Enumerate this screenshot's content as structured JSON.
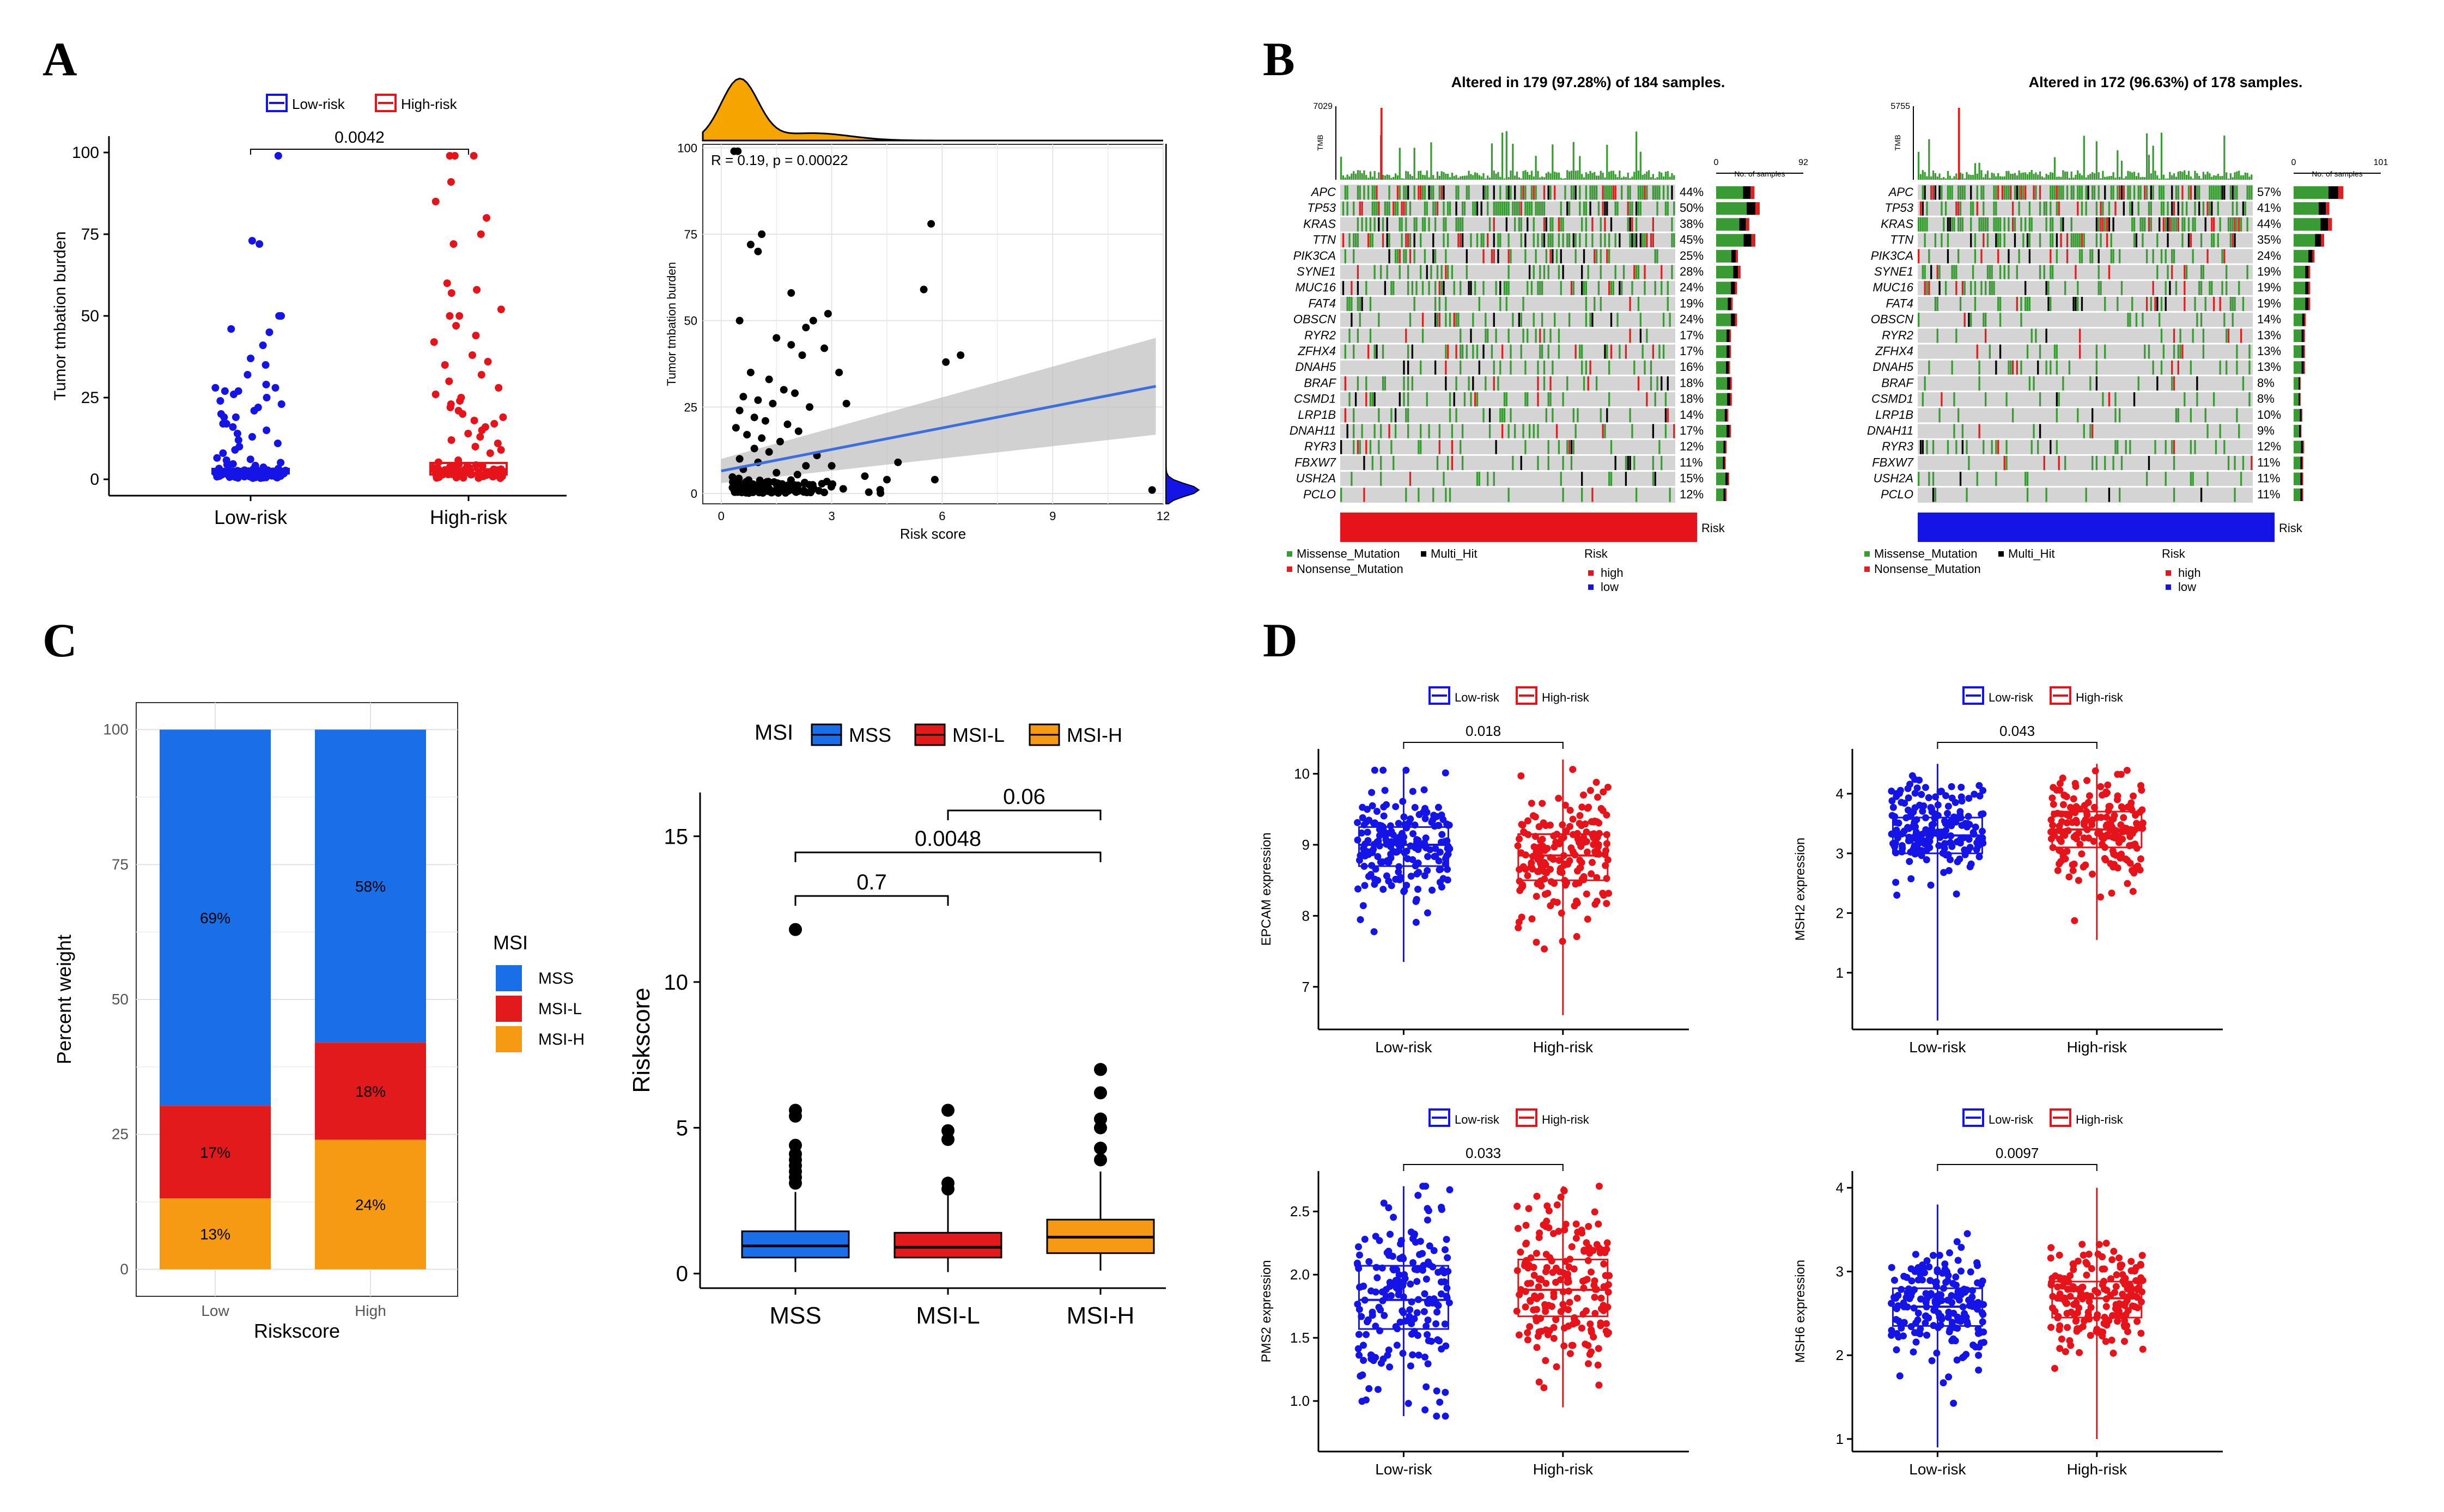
{
  "panel_letters": [
    "A",
    "B",
    "C",
    "D"
  ],
  "colors": {
    "blue": "#1414e6",
    "red": "#e6141a",
    "mss": "#1a6ee8",
    "msil": "#e31a1c",
    "msih": "#f59a12",
    "missense": "#3a9b35",
    "nonsense": "#e02020",
    "multi": "#000000",
    "grey": "#d4d4d4",
    "orange": "#f5a400",
    "fit": "#3b6fe0"
  },
  "chart_data": [
    {
      "id": "A1",
      "type": "box",
      "title": "",
      "ylabel": "Tumor tmbation burden",
      "xlabel": "",
      "legend": [
        "Low-risk",
        "High-risk"
      ],
      "categories": [
        "Low-risk",
        "High-risk"
      ],
      "ylim": [
        0,
        100
      ],
      "yticks": [
        0,
        25,
        50,
        75,
        100
      ],
      "medians": [
        2.5,
        3
      ],
      "q1": [
        1.8,
        1.5
      ],
      "q3": [
        3.2,
        5
      ],
      "pvalue": "0.0042",
      "outliers": [
        [
          99,
          73,
          72,
          50,
          50,
          46,
          45,
          41,
          37,
          35,
          32,
          29,
          28,
          28,
          27,
          27,
          26,
          25,
          24,
          23,
          22,
          21,
          20,
          19,
          19,
          17,
          17,
          16,
          15,
          14,
          13,
          12,
          11,
          10,
          9,
          8
        ],
        [
          99,
          99,
          99,
          91,
          85,
          80,
          75,
          72,
          60,
          58,
          57,
          52,
          50,
          50,
          47,
          44,
          42,
          38,
          36,
          35,
          32,
          30,
          28,
          26,
          25,
          24,
          23,
          22,
          21,
          20,
          19,
          18,
          17,
          16,
          15,
          14,
          13,
          12,
          11,
          10,
          9,
          8
        ]
      ]
    },
    {
      "id": "A2",
      "type": "scatter",
      "annotation": "R = 0.19, p = 0.00022",
      "ylabel": "Tumor tmbation burden",
      "xlabel": "Risk score",
      "xlim": [
        -0.5,
        12
      ],
      "ylim": [
        -3,
        101
      ],
      "xticks": [
        0,
        3,
        6,
        9,
        12
      ],
      "yticks": [
        0,
        25,
        50,
        75,
        100
      ],
      "fit_line": {
        "x0": 0,
        "y0": 6.5,
        "x1": 11.8,
        "y1": 31
      },
      "points": [
        [
          0.35,
          99
        ],
        [
          0.45,
          99
        ],
        [
          0.8,
          72
        ],
        [
          1.0,
          70
        ],
        [
          1.1,
          75
        ],
        [
          5.7,
          78
        ],
        [
          5.5,
          59
        ],
        [
          1.9,
          58
        ],
        [
          0.5,
          50
        ],
        [
          2.3,
          48
        ],
        [
          2.5,
          50
        ],
        [
          2.9,
          52
        ],
        [
          1.5,
          45
        ],
        [
          1.9,
          43
        ],
        [
          2.2,
          40
        ],
        [
          2.8,
          42
        ],
        [
          6.5,
          40
        ],
        [
          6.1,
          38
        ],
        [
          3.2,
          35
        ],
        [
          1.3,
          33
        ],
        [
          0.8,
          35
        ],
        [
          1.7,
          30
        ],
        [
          2.0,
          29
        ],
        [
          0.6,
          28
        ],
        [
          1.0,
          27
        ],
        [
          1.4,
          26
        ],
        [
          2.4,
          25
        ],
        [
          3.4,
          26
        ],
        [
          0.5,
          24
        ],
        [
          0.9,
          22
        ],
        [
          1.2,
          21
        ],
        [
          1.8,
          20
        ],
        [
          2.1,
          18
        ],
        [
          0.4,
          19
        ],
        [
          0.7,
          17
        ],
        [
          1.1,
          16
        ],
        [
          1.6,
          15
        ],
        [
          0.9,
          13
        ],
        [
          1.3,
          12
        ],
        [
          2.6,
          11
        ],
        [
          0.5,
          10
        ],
        [
          1.0,
          9
        ],
        [
          2.3,
          8
        ],
        [
          3.0,
          8
        ],
        [
          4.8,
          9
        ],
        [
          0.6,
          7
        ],
        [
          1.5,
          6
        ],
        [
          3.9,
          5
        ],
        [
          5.8,
          4
        ],
        [
          4.5,
          4
        ],
        [
          11.7,
          1
        ]
      ]
    },
    {
      "id": "B1",
      "type": "oncoplot",
      "title": "Altered in 179 (97.28%) of 184 samples.",
      "tmb_max": "7029",
      "tmb_label": "TMB",
      "count_axis": [
        "0",
        "No. of samples",
        "92"
      ],
      "genes": [
        "APC",
        "TP53",
        "KRAS",
        "TTN",
        "PIK3CA",
        "SYNE1",
        "MUC16",
        "FAT4",
        "OBSCN",
        "RYR2",
        "ZFHX4",
        "DNAH5",
        "BRAF",
        "CSMD1",
        "LRP1B",
        "DNAH11",
        "RYR3",
        "FBXW7",
        "USH2A",
        "PCLO"
      ],
      "percents": [
        "44%",
        "50%",
        "38%",
        "45%",
        "25%",
        "28%",
        "24%",
        "19%",
        "24%",
        "17%",
        "17%",
        "16%",
        "18%",
        "18%",
        "14%",
        "17%",
        "12%",
        "11%",
        "15%",
        "12%"
      ],
      "frac": [
        0.44,
        0.5,
        0.38,
        0.45,
        0.25,
        0.28,
        0.24,
        0.19,
        0.24,
        0.17,
        0.17,
        0.16,
        0.18,
        0.18,
        0.14,
        0.17,
        0.12,
        0.11,
        0.15,
        0.12
      ],
      "risk_label": "Risk",
      "risk_group": "high",
      "legend_items": [
        "Missense_Mutation",
        "Multi_Hit",
        "Nonsense_Mutation"
      ],
      "risk_legend": [
        "Risk",
        "high",
        "low"
      ]
    },
    {
      "id": "B2",
      "type": "oncoplot",
      "title": "Altered in 172 (96.63%) of 178 samples.",
      "tmb_max": "5755",
      "tmb_label": "TMB",
      "count_axis": [
        "0",
        "No. of samples",
        "101"
      ],
      "genes": [
        "APC",
        "TP53",
        "KRAS",
        "TTN",
        "PIK3CA",
        "SYNE1",
        "MUC16",
        "FAT4",
        "OBSCN",
        "RYR2",
        "ZFHX4",
        "DNAH5",
        "BRAF",
        "CSMD1",
        "LRP1B",
        "DNAH11",
        "RYR3",
        "FBXW7",
        "USH2A",
        "PCLO"
      ],
      "percents": [
        "57%",
        "41%",
        "44%",
        "35%",
        "24%",
        "19%",
        "19%",
        "19%",
        "14%",
        "13%",
        "13%",
        "13%",
        "8%",
        "8%",
        "10%",
        "9%",
        "12%",
        "11%",
        "11%",
        "11%"
      ],
      "frac": [
        0.57,
        0.41,
        0.44,
        0.35,
        0.24,
        0.19,
        0.19,
        0.19,
        0.14,
        0.13,
        0.13,
        0.13,
        0.08,
        0.08,
        0.1,
        0.09,
        0.12,
        0.11,
        0.11,
        0.11
      ],
      "risk_label": "Risk",
      "risk_group": "low",
      "legend_items": [
        "Missense_Mutation",
        "Multi_Hit",
        "Nonsense_Mutation"
      ],
      "risk_legend": [
        "Risk",
        "high",
        "low"
      ]
    },
    {
      "id": "C1",
      "type": "stacked_bar",
      "ylabel": "Percent weight",
      "xlabel": "Riskscore",
      "categories": [
        "Low",
        "High"
      ],
      "ylim": [
        0,
        100
      ],
      "yticks": [
        0,
        25,
        50,
        75,
        100
      ],
      "legend_title": "MSI",
      "series": [
        {
          "name": "MSS",
          "values": [
            69,
            58
          ],
          "labels": [
            "69%",
            "58%"
          ]
        },
        {
          "name": "MSI-L",
          "values": [
            17,
            18
          ],
          "labels": [
            "17%",
            "18%"
          ]
        },
        {
          "name": "MSI-H",
          "values": [
            13,
            24
          ],
          "labels": [
            "13%",
            "24%"
          ]
        }
      ]
    },
    {
      "id": "C2",
      "type": "box",
      "legend_title": "MSI",
      "legend": [
        "MSS",
        "MSI-L",
        "MSI-H"
      ],
      "ylabel": "Riskscore",
      "xlabel": "",
      "categories": [
        "MSS",
        "MSI-L",
        "MSI-H"
      ],
      "ylim": [
        -0.5,
        16.5
      ],
      "yticks": [
        0,
        5,
        10,
        15
      ],
      "q1": [
        0.55,
        0.55,
        0.7
      ],
      "median": [
        0.95,
        0.9,
        1.25
      ],
      "q3": [
        1.45,
        1.4,
        1.85
      ],
      "wmin": [
        0.05,
        0.05,
        0.1
      ],
      "wmax": [
        2.8,
        2.7,
        3.5
      ],
      "outliers": [
        [
          11.8,
          5.6,
          5.4,
          4.4,
          4.1,
          3.9,
          3.7,
          3.5,
          3.3,
          3.1
        ],
        [
          5.6,
          4.9,
          4.6,
          3.1,
          2.9
        ],
        [
          7.0,
          6.2,
          5.3,
          5.0,
          4.3,
          3.9
        ]
      ],
      "comparisons": [
        {
          "a": 1,
          "b": 2,
          "label": "0.06"
        },
        {
          "a": 0,
          "b": 2,
          "label": "0.0048"
        },
        {
          "a": 0,
          "b": 1,
          "label": "0.7"
        }
      ]
    },
    {
      "id": "D1",
      "type": "box",
      "ylabel": "EPCAM expression",
      "legend": [
        "Low-risk",
        "High-risk"
      ],
      "categories": [
        "Low-risk",
        "High-risk"
      ],
      "ylim": [
        6.4,
        10.35
      ],
      "yticks": [
        7,
        8,
        9,
        10
      ],
      "q1": [
        8.7,
        8.5
      ],
      "median": [
        9.0,
        8.85
      ],
      "q3": [
        9.25,
        9.15
      ],
      "wmin": [
        7.35,
        6.6
      ],
      "wmax": [
        10.05,
        10.2
      ],
      "pvalue": "0.018"
    },
    {
      "id": "D2",
      "type": "box",
      "ylabel": "MSH2 expression",
      "legend": [
        "Low-risk",
        "High-risk"
      ],
      "categories": [
        "Low-risk",
        "High-risk"
      ],
      "ylim": [
        0.05,
        4.75
      ],
      "yticks": [
        1,
        2,
        3,
        4
      ],
      "q1": [
        3.0,
        3.1
      ],
      "median": [
        3.3,
        3.4
      ],
      "q3": [
        3.6,
        3.7
      ],
      "wmin": [
        0.2,
        1.55
      ],
      "wmax": [
        4.5,
        4.5
      ],
      "pvalue": "0.043"
    },
    {
      "id": "D3",
      "type": "box",
      "ylabel": "PMS2 expression",
      "legend": [
        "Low-risk",
        "High-risk"
      ],
      "categories": [
        "Low-risk",
        "High-risk"
      ],
      "ylim": [
        0.6,
        2.82
      ],
      "yticks": [
        1.0,
        1.5,
        2.0,
        2.5
      ],
      "q1": [
        1.57,
        1.67
      ],
      "median": [
        1.8,
        1.88
      ],
      "q3": [
        2.07,
        2.12
      ],
      "wmin": [
        0.88,
        0.95
      ],
      "wmax": [
        2.7,
        2.7
      ],
      "pvalue": "0.033"
    },
    {
      "id": "D4",
      "type": "box",
      "ylabel": "MSH6 expression",
      "legend": [
        "Low-risk",
        "High-risk"
      ],
      "categories": [
        "Low-risk",
        "High-risk"
      ],
      "ylim": [
        0.85,
        4.2
      ],
      "yticks": [
        1,
        2,
        3,
        4
      ],
      "q1": [
        2.35,
        2.45
      ],
      "median": [
        2.58,
        2.68
      ],
      "q3": [
        2.8,
        2.88
      ],
      "wmin": [
        0.9,
        1.0
      ],
      "wmax": [
        3.8,
        4.0
      ],
      "pvalue": "0.0097"
    }
  ]
}
